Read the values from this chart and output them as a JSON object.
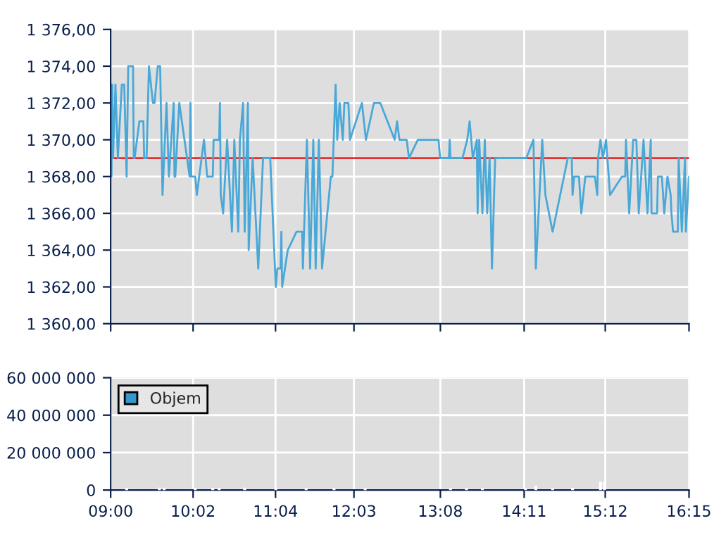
{
  "chart_data": [
    {
      "type": "line",
      "color": "#4aa8d8",
      "x": [
        9.01,
        9.01,
        9.02,
        9.03,
        9.06,
        9.09,
        9.14,
        9.17,
        9.2,
        9.22,
        9.28,
        9.29,
        9.3,
        9.36,
        9.41,
        9.42,
        9.45,
        9.48,
        9.53,
        9.55,
        9.59,
        9.62,
        9.65,
        9.7,
        9.73,
        9.79,
        9.8,
        9.81,
        9.86,
        9.99,
        10.0,
        10.01,
        10.06,
        10.08,
        10.17,
        10.21,
        10.28,
        10.29,
        10.36,
        10.37,
        10.38,
        10.41,
        10.46,
        10.52,
        10.55,
        10.6,
        10.62,
        10.66,
        10.68,
        10.72,
        10.73,
        10.78,
        10.85,
        10.91,
        11.0,
        11.07,
        11.09,
        11.13,
        11.14,
        11.15,
        11.22,
        11.33,
        11.4,
        11.41,
        11.46,
        11.5,
        11.54,
        11.57,
        11.61,
        11.65,
        11.76,
        11.78,
        11.82,
        11.84,
        11.87,
        11.91,
        11.93,
        11.98,
        12.0,
        12.15,
        12.2,
        12.3,
        12.38,
        12.56,
        12.59,
        12.62,
        12.71,
        12.74,
        12.85,
        13.11,
        13.13,
        13.24,
        13.25,
        13.26,
        13.41,
        13.47,
        13.5,
        13.54,
        13.59,
        13.6,
        13.62,
        13.66,
        13.69,
        13.72,
        13.75,
        13.78,
        13.82,
        14.21,
        14.3,
        14.33,
        14.41,
        14.45,
        14.54,
        14.73,
        14.78,
        14.79,
        14.81,
        14.87,
        14.9,
        14.95,
        15.07,
        15.1,
        15.11,
        15.14,
        15.17,
        15.21,
        15.26,
        15.41,
        15.45,
        15.46,
        15.5,
        15.55,
        15.59,
        15.62,
        15.68,
        15.73,
        15.77,
        15.78,
        15.85,
        15.86,
        15.91,
        15.94,
        15.98,
        16.02,
        16.03,
        16.05,
        16.11,
        16.12,
        16.16,
        16.17,
        16.2,
        16.21,
        16.25
      ],
      "values": [
        1373,
        1368,
        1373,
        1369,
        1373,
        1369,
        1373,
        1373,
        1368,
        1374,
        1374,
        1369,
        1369,
        1371,
        1371,
        1369,
        1369,
        1374,
        1372,
        1372,
        1374,
        1374,
        1367,
        1372,
        1368,
        1372,
        1368,
        1368,
        1372,
        1368,
        1372,
        1368,
        1368,
        1367,
        1370,
        1368,
        1368,
        1370,
        1370,
        1372,
        1367,
        1366,
        1370,
        1365,
        1370,
        1365,
        1370,
        1372,
        1365,
        1372,
        1364,
        1369,
        1363,
        1369,
        1369,
        1362,
        1363,
        1363,
        1365,
        1362,
        1364,
        1365,
        1365,
        1363,
        1370,
        1363,
        1370,
        1363,
        1370,
        1363,
        1368,
        1368,
        1373,
        1370,
        1372,
        1370,
        1372,
        1372,
        1370,
        1372,
        1370,
        1372,
        1372,
        1370,
        1371,
        1370,
        1370,
        1369,
        1370,
        1370,
        1369,
        1369,
        1370,
        1369,
        1369,
        1370,
        1371,
        1369,
        1370,
        1366,
        1370,
        1366,
        1370,
        1366,
        1369,
        1363,
        1369,
        1369,
        1370,
        1363,
        1370,
        1367,
        1365,
        1369,
        1369,
        1367,
        1368,
        1368,
        1366,
        1368,
        1368,
        1367,
        1369,
        1370,
        1369,
        1370,
        1367,
        1368,
        1368,
        1370,
        1366,
        1370,
        1370,
        1366,
        1370,
        1366,
        1370,
        1366,
        1366,
        1368,
        1368,
        1366,
        1368,
        1367,
        1366,
        1365,
        1365,
        1369,
        1365,
        1366,
        1369,
        1365,
        1368
      ],
      "xlim": [
        9,
        16.25
      ],
      "xticks": [
        {
          "value": 9,
          "label": null
        },
        {
          "value": 10.0333,
          "label": null
        },
        {
          "value": 11.0667,
          "label": null
        },
        {
          "value": 12.05,
          "label": null
        },
        {
          "value": 13.1333,
          "label": null
        },
        {
          "value": 14.1833,
          "label": null
        },
        {
          "value": 15.2,
          "label": null
        },
        {
          "value": 16.25,
          "label": null
        }
      ],
      "ylim": [
        1360,
        1376
      ],
      "yticks": [
        {
          "value": 1360,
          "label": "1 360,00"
        },
        {
          "value": 1362,
          "label": "1 362,00"
        },
        {
          "value": 1364,
          "label": "1 364,00"
        },
        {
          "value": 1366,
          "label": "1 366,00"
        },
        {
          "value": 1368,
          "label": "1 368,00"
        },
        {
          "value": 1370,
          "label": "1 370,00"
        },
        {
          "value": 1372,
          "label": "1 372,00"
        },
        {
          "value": 1374,
          "label": "1 374,00"
        },
        {
          "value": 1376,
          "label": "1 376,00"
        }
      ],
      "ref_lines": [
        {
          "axis": "y",
          "value": 1369,
          "color": "#e03030"
        }
      ],
      "grid": true,
      "tick_labels": "y"
    },
    {
      "type": "bar",
      "x": [
        9.2,
        9.61,
        9.67,
        10.06,
        10.28,
        10.36,
        10.68,
        11.07,
        11.45,
        11.8,
        12.19,
        13.26,
        13.46,
        13.66,
        14.2,
        14.33,
        14.54,
        14.79,
        15.14,
        15.19
      ],
      "series": [
        {
          "name": "Objem",
          "color": "#3399cc",
          "values": [
            600000,
            800000,
            800000,
            500000,
            700000,
            600000,
            800000,
            600000,
            500000,
            500000,
            500000,
            500000,
            600000,
            500000,
            500000,
            1800000,
            500000,
            700000,
            4000000,
            4000000
          ]
        }
      ],
      "xlim": [
        9,
        16.25
      ],
      "xticks": [
        {
          "value": 9,
          "label": "09:00"
        },
        {
          "value": 10.0333,
          "label": "10:02"
        },
        {
          "value": 11.0667,
          "label": "11:04"
        },
        {
          "value": 12.05,
          "label": "12:03"
        },
        {
          "value": 13.1333,
          "label": "13:08"
        },
        {
          "value": 14.1833,
          "label": "14:11"
        },
        {
          "value": 15.2,
          "label": "15:12"
        },
        {
          "value": 16.25,
          "label": "16:15"
        }
      ],
      "ylim": [
        0,
        60000000
      ],
      "yticks": [
        {
          "value": 0,
          "label": "0"
        },
        {
          "value": 20000000,
          "label": "20 000 000"
        },
        {
          "value": 40000000,
          "label": "40 000 000"
        },
        {
          "value": 60000000,
          "label": "60 000 000"
        }
      ],
      "grid": true,
      "legend": "top left"
    }
  ]
}
